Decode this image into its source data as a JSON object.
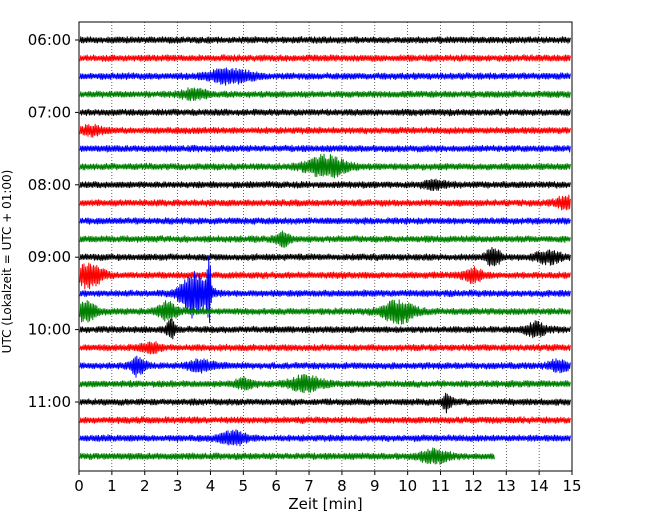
{
  "chart_data": {
    "type": "line",
    "title": "",
    "xlabel": "Zeit  [min]",
    "ylabel": "UTC (Lokalzeit = UTC + 01:00)",
    "xlim": [
      0,
      15
    ],
    "x_ticks": [
      "0",
      "1",
      "2",
      "3",
      "4",
      "5",
      "6",
      "7",
      "8",
      "9",
      "10",
      "11",
      "12",
      "13",
      "14",
      "15"
    ],
    "y_ticks": [
      "06:00",
      "07:00",
      "08:00",
      "09:00",
      "10:00",
      "11:00"
    ],
    "grid": "vertical dotted",
    "legend": "none",
    "trace_colors": [
      "#000000",
      "#ff0000",
      "#0000ff",
      "#008000"
    ],
    "traces": [
      {
        "start": "06:00",
        "end_min": 15,
        "color": "#000000",
        "events": []
      },
      {
        "start": "06:15",
        "end_min": 15,
        "color": "#ff0000",
        "events": []
      },
      {
        "start": "06:30",
        "end_min": 15,
        "color": "#0000ff",
        "events": [
          {
            "t": 4.6,
            "amp": 7,
            "width": 0.6
          }
        ]
      },
      {
        "start": "06:45",
        "end_min": 15,
        "color": "#008000",
        "events": [
          {
            "t": 3.5,
            "amp": 4,
            "width": 0.4
          }
        ]
      },
      {
        "start": "07:00",
        "end_min": 15,
        "color": "#000000",
        "events": []
      },
      {
        "start": "07:15",
        "end_min": 15,
        "color": "#ff0000",
        "events": [
          {
            "t": 0.4,
            "amp": 4,
            "width": 0.3
          }
        ]
      },
      {
        "start": "07:30",
        "end_min": 15,
        "color": "#0000ff",
        "events": []
      },
      {
        "start": "07:45",
        "end_min": 15,
        "color": "#008000",
        "events": [
          {
            "t": 7.5,
            "amp": 10,
            "width": 0.6
          }
        ]
      },
      {
        "start": "08:00",
        "end_min": 15,
        "color": "#000000",
        "events": [
          {
            "t": 10.8,
            "amp": 3,
            "width": 0.4
          }
        ]
      },
      {
        "start": "08:15",
        "end_min": 15,
        "color": "#ff0000",
        "events": [
          {
            "t": 14.8,
            "amp": 5,
            "width": 0.3
          }
        ]
      },
      {
        "start": "08:30",
        "end_min": 15,
        "color": "#0000ff",
        "events": []
      },
      {
        "start": "08:45",
        "end_min": 15,
        "color": "#008000",
        "events": [
          {
            "t": 6.2,
            "amp": 6,
            "width": 0.2
          }
        ]
      },
      {
        "start": "09:00",
        "end_min": 15,
        "color": "#000000",
        "events": [
          {
            "t": 12.6,
            "amp": 10,
            "width": 0.2
          },
          {
            "t": 14.3,
            "amp": 5,
            "width": 0.4
          }
        ]
      },
      {
        "start": "09:15",
        "end_min": 15,
        "color": "#ff0000",
        "events": [
          {
            "t": 0.3,
            "amp": 12,
            "width": 0.4
          },
          {
            "t": 12.0,
            "amp": 6,
            "width": 0.3
          }
        ]
      },
      {
        "start": "09:30",
        "end_min": 15,
        "color": "#0000ff",
        "events": [
          {
            "t": 3.5,
            "amp": 22,
            "width": 0.4
          },
          {
            "t": 3.95,
            "amp": 38,
            "width": 0.06
          }
        ]
      },
      {
        "start": "09:45",
        "end_min": 15,
        "color": "#008000",
        "events": [
          {
            "t": 0.2,
            "amp": 9,
            "width": 0.3
          },
          {
            "t": 2.7,
            "amp": 8,
            "width": 0.3
          },
          {
            "t": 9.7,
            "amp": 10,
            "width": 0.5
          }
        ]
      },
      {
        "start": "10:00",
        "end_min": 15,
        "color": "#000000",
        "events": [
          {
            "t": 2.8,
            "amp": 8,
            "width": 0.15
          },
          {
            "t": 13.9,
            "amp": 6,
            "width": 0.3
          }
        ]
      },
      {
        "start": "10:15",
        "end_min": 15,
        "color": "#ff0000",
        "events": [
          {
            "t": 2.2,
            "amp": 4,
            "width": 0.3
          }
        ]
      },
      {
        "start": "10:30",
        "end_min": 15,
        "color": "#0000ff",
        "events": [
          {
            "t": 1.8,
            "amp": 9,
            "width": 0.2
          },
          {
            "t": 3.7,
            "amp": 5,
            "width": 0.4
          },
          {
            "t": 14.6,
            "amp": 5,
            "width": 0.3
          }
        ]
      },
      {
        "start": "10:45",
        "end_min": 15,
        "color": "#008000",
        "events": [
          {
            "t": 6.9,
            "amp": 7,
            "width": 0.5
          },
          {
            "t": 5.0,
            "amp": 4,
            "width": 0.3
          }
        ]
      },
      {
        "start": "11:00",
        "end_min": 15,
        "color": "#000000",
        "events": [
          {
            "t": 11.2,
            "amp": 8,
            "width": 0.15
          }
        ]
      },
      {
        "start": "11:15",
        "end_min": 15,
        "color": "#ff0000",
        "events": []
      },
      {
        "start": "11:30",
        "end_min": 15,
        "color": "#0000ff",
        "events": [
          {
            "t": 4.7,
            "amp": 6,
            "width": 0.4
          }
        ]
      },
      {
        "start": "11:45",
        "end_min": 12.65,
        "color": "#008000",
        "events": [
          {
            "t": 10.8,
            "amp": 6,
            "width": 0.4
          }
        ]
      }
    ]
  }
}
